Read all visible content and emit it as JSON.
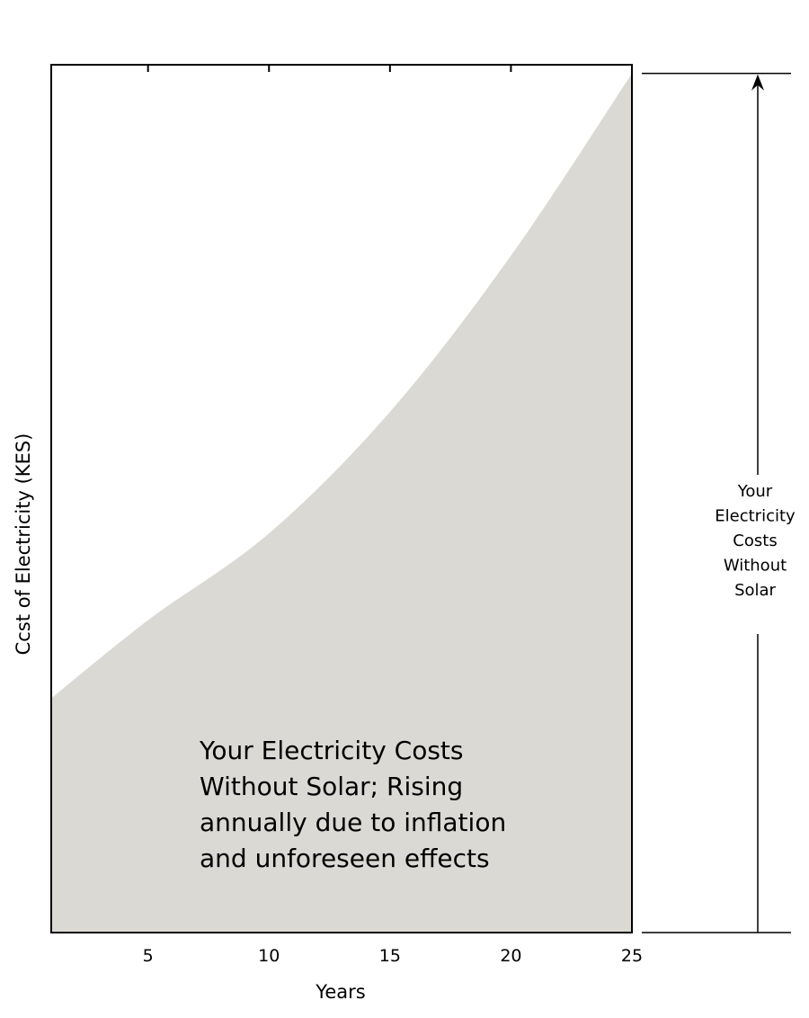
{
  "chart_data": {
    "type": "area",
    "xlabel": "Years",
    "ylabel": "Ccst of Electricity (KES)",
    "x_ticks": [
      5,
      10,
      15,
      20,
      25
    ],
    "xlim": [
      1,
      25
    ],
    "ylim": [
      0,
      1
    ],
    "grid": false,
    "series": [
      {
        "x": [
          1,
          5,
          10,
          15,
          20,
          25
        ],
        "y": [
          0.27,
          0.36,
          0.46,
          0.6,
          0.78,
          0.99
        ],
        "fill_color": "#dbd9d4"
      }
    ],
    "annotation_lines": [
      "Your Electricity Costs",
      "Without Solar; Rising",
      "annually due to inflation",
      "and unforeseen effects"
    ],
    "side_label_lines": [
      "Your",
      "Electricity",
      "Costs",
      "Without",
      "Solar"
    ]
  },
  "colors": {
    "area_fill": "#dbd9d4",
    "axis": "#000000"
  }
}
